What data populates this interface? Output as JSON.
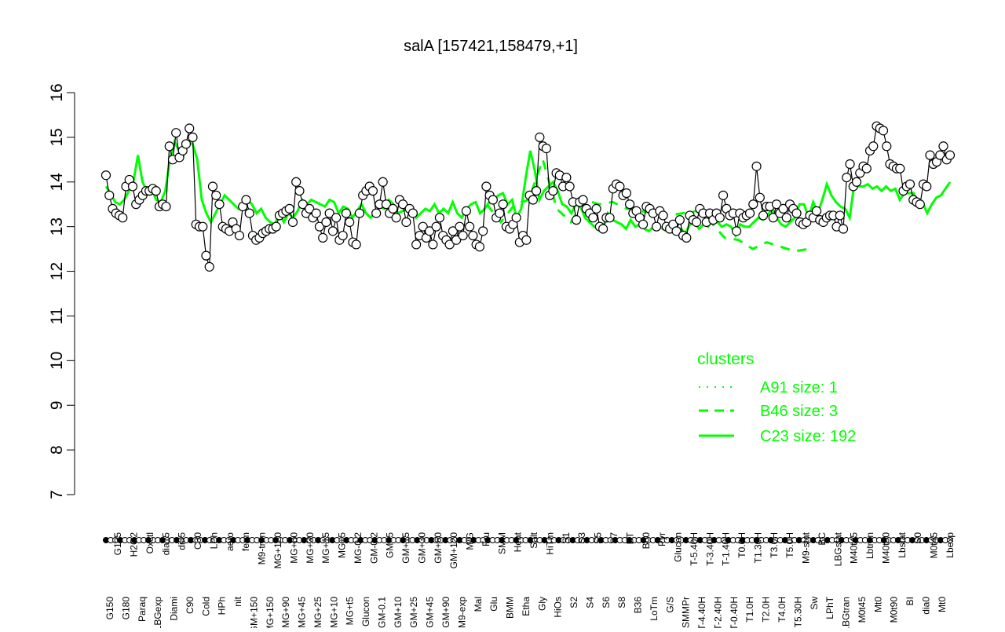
{
  "chart_data": {
    "type": "line",
    "title": "salA [157421,158479,+1]",
    "xlabel": "",
    "ylabel": "",
    "ylim": [
      7,
      16
    ],
    "y_ticks": [
      7,
      8,
      9,
      10,
      11,
      12,
      13,
      14,
      15,
      16
    ],
    "x_tick_labels": [
      "G150",
      "G135",
      "G180",
      "H2O2",
      "Paraq",
      "Oxctl",
      "LBGexp",
      "dia15",
      "Diami",
      "dia5",
      "C90",
      "C30",
      "Cold",
      "LPh",
      "HPh",
      "aero",
      "nit",
      "ferm",
      "GM+150",
      "M9-tran",
      "MG+150",
      "MG+120",
      "MG+90",
      "MG+60",
      "MG+45",
      "MG+30",
      "MG+25",
      "MG+15",
      "MG+10",
      "MG+5",
      "MG+t5",
      "MG-0.2",
      "Glucon",
      "GM-0.2",
      "GM-0.1",
      "GM+5",
      "GM+10",
      "GM+15",
      "GM+25",
      "GM+30",
      "GM+45",
      "GM+60",
      "GM+90",
      "GM+120",
      "M9-exp",
      "M/G",
      "Mal",
      "Fru",
      "Glu",
      "SMM",
      "BMM",
      "Heat",
      "Etha",
      "Salt",
      "Gly",
      "HiTm",
      "HiOs",
      "S1",
      "S2",
      "S3",
      "S4",
      "S5",
      "S6",
      "S7",
      "S8",
      "BT",
      "B36",
      "B60",
      "LoTm",
      "Pyr",
      "G/S",
      "Glucon",
      "SMMPr",
      "T-5.40H",
      "T-4.40H",
      "T-3.40H",
      "T-2.40H",
      "T-1.40H",
      "T-0.40H",
      "T0.0H",
      "T1.0H",
      "T1.30H",
      "T2.0H",
      "T3.0H",
      "T4.0H",
      "T5.0H",
      "T5.30H",
      "M9-stat",
      "Sw",
      "BC",
      "LPhT",
      "LBGstat",
      "LBGtran",
      "M40t45",
      "M0t45",
      "Lbtran",
      "Mt0",
      "M40t90",
      "M0t90",
      "Lbstat",
      "BI",
      "S0",
      "dia0",
      "M0t45",
      "Mt0",
      "Lbexp"
    ],
    "point_values": [
      14.15,
      13.7,
      13.4,
      13.3,
      13.25,
      13.2,
      13.9,
      14.05,
      13.9,
      13.5,
      13.6,
      13.7,
      13.8,
      13.8,
      13.85,
      13.8,
      13.45,
      13.5,
      13.45,
      14.8,
      14.5,
      15.1,
      14.55,
      14.7,
      14.85,
      15.2,
      15.0,
      13.05,
      13.0,
      13.0,
      12.35,
      12.1,
      13.9,
      13.7,
      13.5,
      13.0,
      12.95,
      12.9,
      13.1,
      12.95,
      12.8,
      13.45,
      13.6,
      13.3,
      12.8,
      12.7,
      12.75,
      12.85,
      12.9,
      12.95,
      12.95,
      13.0,
      13.25,
      13.3,
      13.35,
      13.4,
      13.1,
      14.0,
      13.8,
      13.5,
      13.3,
      13.4,
      13.2,
      13.3,
      13.0,
      12.75,
      13.1,
      13.3,
      12.9,
      13.2,
      12.7,
      12.8,
      13.3,
      13.1,
      12.65,
      12.6,
      13.3,
      13.7,
      13.8,
      13.9,
      13.8,
      13.3,
      13.5,
      14.0,
      13.5,
      13.3,
      13.4,
      13.2,
      13.6,
      13.5,
      13.1,
      13.4,
      13.3,
      12.6,
      12.8,
      13.0,
      12.75,
      12.9,
      12.6,
      13.0,
      13.2,
      12.8,
      12.7,
      12.6,
      12.9,
      12.7,
      13.0,
      12.8,
      13.35,
      13.0,
      12.8,
      12.6,
      12.55,
      12.9,
      13.9,
      13.7,
      13.6,
      13.2,
      13.3,
      13.5,
      13.0,
      12.95,
      13.05,
      13.2,
      12.65,
      12.8,
      12.7,
      13.7,
      13.6,
      13.8,
      15.0,
      14.8,
      14.75,
      13.7,
      13.8,
      14.2,
      14.15,
      13.9,
      14.1,
      13.9,
      13.55,
      13.15,
      13.55,
      13.6,
      13.4,
      13.3,
      13.2,
      13.4,
      13.0,
      12.95,
      13.2,
      13.2,
      13.85,
      13.95,
      13.9,
      13.7,
      13.75,
      13.5,
      13.3,
      13.35,
      13.2,
      13.05,
      13.45,
      13.4,
      13.3,
      13.0,
      13.35,
      13.25,
      13.0,
      12.95,
      13.05,
      12.9,
      13.15,
      12.8,
      12.75,
      13.25,
      13.15,
      13.1,
      13.4,
      13.3,
      13.1,
      13.3,
      13.15,
      13.3,
      13.2,
      13.7,
      13.4,
      13.25,
      13.3,
      12.9,
      13.3,
      13.2,
      13.25,
      13.3,
      13.5,
      14.35,
      13.65,
      13.25,
      13.45,
      13.45,
      13.2,
      13.5,
      13.3,
      13.4,
      13.2,
      13.5,
      13.4,
      13.3,
      13.1,
      13.05,
      13.1,
      13.25,
      13.2,
      13.35,
      13.15,
      13.1,
      13.2,
      13.25,
      13.25,
      13.0,
      13.25,
      12.95,
      14.1,
      14.4,
      13.9,
      14.0,
      14.2,
      14.35,
      14.3,
      14.7,
      14.8,
      15.25,
      15.2,
      15.15,
      14.8,
      14.4,
      14.35,
      14.3,
      14.3,
      13.8,
      13.9,
      13.95,
      13.6,
      13.55,
      13.5,
      13.95,
      13.9,
      14.6,
      14.4,
      14.45,
      14.6,
      14.8,
      14.5,
      14.6
    ],
    "series": [
      {
        "name": "C23 size: 192",
        "style": "solid",
        "values": [
          13.9,
          13.75,
          13.55,
          13.5,
          13.6,
          13.8,
          14.0,
          14.6,
          14.0,
          13.8,
          13.85,
          13.6,
          13.55,
          13.8,
          14.5,
          14.9,
          14.7,
          14.6,
          14.9,
          14.85,
          14.5,
          13.6,
          13.3,
          13.1,
          13.3,
          13.5,
          13.7,
          13.6,
          13.5,
          13.4,
          13.5,
          13.6,
          13.5,
          13.3,
          13.4,
          13.2,
          13.1,
          13.05,
          13.3,
          13.1,
          13.3,
          13.2,
          13.35,
          13.6,
          13.5,
          13.6,
          13.55,
          13.5,
          13.45,
          13.6,
          13.55,
          13.3,
          13.45,
          13.4,
          13.2,
          13.35,
          13.5,
          13.3,
          13.2,
          13.3,
          13.45,
          13.4,
          13.6,
          13.5,
          13.3,
          13.35,
          13.4,
          13.45,
          13.2,
          13.3,
          13.4,
          13.35,
          13.5,
          13.3,
          13.4,
          13.3,
          13.55,
          13.3,
          13.2,
          13.4,
          13.5,
          13.55,
          13.3,
          13.4,
          13.55,
          13.6,
          13.7,
          13.75,
          13.5,
          13.6,
          13.2,
          13.4,
          14.1,
          14.7,
          14.25,
          13.6,
          13.8,
          13.9,
          14.0,
          13.8,
          13.5,
          13.45,
          13.3,
          13.5,
          13.45,
          13.2,
          13.1,
          13.0,
          12.95,
          13.0,
          13.3,
          13.15,
          13.1,
          13.05,
          12.95,
          13.15,
          13.0,
          13.05,
          12.95,
          12.9,
          13.0,
          13.05,
          12.95,
          13.05,
          12.95,
          12.9,
          12.95,
          12.85,
          13.05,
          13.1,
          12.95,
          13.05,
          13.0,
          13.2,
          13.1,
          13.0,
          13.05,
          13.0,
          12.8,
          13.05,
          13.0,
          13.0,
          13.1,
          13.2,
          13.15,
          13.25,
          13.4,
          13.2,
          13.05,
          13.0,
          13.1,
          13.2,
          13.5,
          13.5,
          13.2,
          13.55,
          13.3,
          13.6,
          13.95,
          13.7,
          13.55,
          13.45,
          13.4,
          13.2,
          13.95,
          13.9,
          13.9,
          13.95,
          13.85,
          13.9,
          13.8,
          13.9,
          13.8,
          13.85,
          13.6,
          13.75,
          13.75,
          13.75,
          13.5,
          13.55,
          13.3,
          13.5,
          13.65,
          13.7,
          13.85,
          14.0
        ]
      },
      {
        "name": "B46 size: 3",
        "style": "dashed",
        "values": [
          13.5,
          13.1,
          13.5,
          13.6,
          14.5,
          13.4,
          13.1,
          13.6,
          13.5,
          13.55,
          13.4,
          13.35,
          13.3,
          13.25,
          13.3,
          13.35,
          13.1,
          12.75,
          12.7,
          12.5,
          12.65,
          12.55,
          12.45,
          12.5
        ]
      },
      {
        "name": "A91 size: 1",
        "style": "dotted",
        "values": []
      }
    ],
    "legend": {
      "title": "clusters",
      "placement": "bottom-right",
      "entries": [
        {
          "label": "A91 size: 1",
          "style": "dotted"
        },
        {
          "label": "B46 size: 3",
          "style": "dashed"
        },
        {
          "label": "C23 size: 192",
          "style": "solid"
        }
      ]
    },
    "colors": {
      "line": "#00ff00",
      "points_fill": "#ffffff",
      "points_stroke": "#000000",
      "axis": "#000000",
      "legend_text": "#00ff00"
    }
  }
}
